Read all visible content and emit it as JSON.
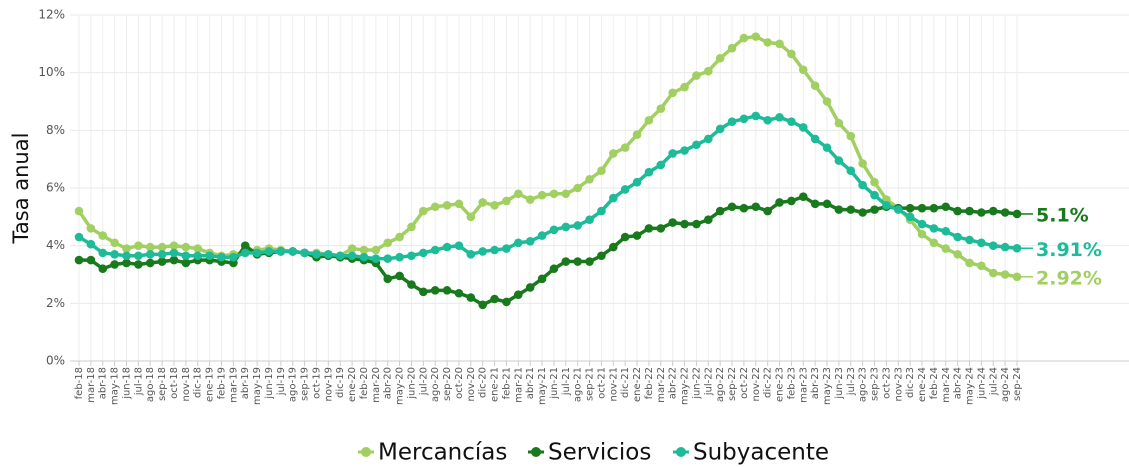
{
  "chart_data": {
    "type": "line",
    "y_label": "Tasa anual",
    "categories": [
      "feb-18",
      "mar-18",
      "abr-18",
      "may-18",
      "jun-18",
      "jul-18",
      "ago-18",
      "sep-18",
      "oct-18",
      "nov-18",
      "dic-18",
      "ene-19",
      "feb-19",
      "mar-19",
      "abr-19",
      "may-19",
      "jun-19",
      "jul-19",
      "ago-19",
      "sep-19",
      "oct-19",
      "nov-19",
      "dic-19",
      "ene-20",
      "feb-20",
      "mar-20",
      "abr-20",
      "may-20",
      "jun-20",
      "jul-20",
      "ago-20",
      "sep-20",
      "oct-20",
      "nov-20",
      "dic-20",
      "ene-21",
      "feb-21",
      "mar-21",
      "abr-21",
      "may-21",
      "jun-21",
      "jul-21",
      "ago-21",
      "sep-21",
      "oct-21",
      "nov-21",
      "dic-21",
      "ene-22",
      "feb-22",
      "mar-22",
      "abr-22",
      "may-22",
      "jun-22",
      "jul-22",
      "ago-22",
      "sep-22",
      "oct-22",
      "nov-22",
      "dic-22",
      "ene-23",
      "feb-23",
      "mar-23",
      "abr-23",
      "may-23",
      "jun-23",
      "jul-23",
      "ago-23",
      "sep-23",
      "oct-23",
      "nov-23",
      "dic-23",
      "ene-24",
      "feb-24",
      "mar-24",
      "abr-24",
      "may-24",
      "jun-24",
      "jul-24",
      "ago-24",
      "sep-24"
    ],
    "series": [
      {
        "name": "Mercancías",
        "color": "#a2cf62",
        "end_label": "2.92%",
        "values": [
          5.2,
          4.6,
          4.35,
          4.1,
          3.9,
          4.0,
          3.95,
          3.95,
          4.0,
          3.95,
          3.9,
          3.75,
          3.65,
          3.7,
          3.75,
          3.85,
          3.9,
          3.85,
          3.8,
          3.75,
          3.75,
          3.7,
          3.65,
          3.9,
          3.85,
          3.85,
          4.1,
          4.3,
          4.65,
          5.2,
          5.35,
          5.4,
          5.45,
          5.0,
          5.5,
          5.4,
          5.55,
          5.8,
          5.6,
          5.75,
          5.8,
          5.8,
          6.0,
          6.3,
          6.6,
          7.2,
          7.4,
          7.85,
          8.35,
          8.75,
          9.3,
          9.5,
          9.9,
          10.05,
          10.5,
          10.85,
          11.2,
          11.25,
          11.05,
          11.0,
          10.65,
          10.1,
          9.55,
          9.0,
          8.25,
          7.8,
          6.85,
          6.2,
          5.6,
          5.3,
          4.9,
          4.4,
          4.1,
          3.9,
          3.7,
          3.4,
          3.3,
          3.05,
          3.0,
          2.92
        ]
      },
      {
        "name": "Servicios",
        "color": "#187a1c",
        "end_label": "5.1%",
        "values": [
          3.5,
          3.5,
          3.2,
          3.35,
          3.4,
          3.35,
          3.4,
          3.45,
          3.5,
          3.4,
          3.5,
          3.5,
          3.45,
          3.4,
          4.0,
          3.7,
          3.75,
          3.8,
          3.8,
          3.75,
          3.6,
          3.65,
          3.6,
          3.55,
          3.5,
          3.4,
          2.85,
          2.95,
          2.65,
          2.4,
          2.45,
          2.45,
          2.35,
          2.2,
          1.95,
          2.15,
          2.05,
          2.3,
          2.55,
          2.85,
          3.2,
          3.45,
          3.45,
          3.45,
          3.65,
          3.95,
          4.3,
          4.35,
          4.6,
          4.6,
          4.8,
          4.75,
          4.75,
          4.9,
          5.2,
          5.35,
          5.3,
          5.35,
          5.2,
          5.5,
          5.55,
          5.7,
          5.45,
          5.45,
          5.25,
          5.25,
          5.15,
          5.25,
          5.35,
          5.3,
          5.3,
          5.3,
          5.3,
          5.35,
          5.2,
          5.2,
          5.15,
          5.2,
          5.15,
          5.1
        ]
      },
      {
        "name": "Subyacente",
        "color": "#1dbb98",
        "end_label": "3.91%",
        "values": [
          4.3,
          4.05,
          3.75,
          3.7,
          3.65,
          3.65,
          3.7,
          3.7,
          3.75,
          3.65,
          3.65,
          3.65,
          3.6,
          3.6,
          3.75,
          3.75,
          3.8,
          3.8,
          3.8,
          3.75,
          3.7,
          3.7,
          3.65,
          3.65,
          3.6,
          3.55,
          3.55,
          3.6,
          3.65,
          3.75,
          3.85,
          3.95,
          4.0,
          3.7,
          3.8,
          3.85,
          3.9,
          4.1,
          4.15,
          4.35,
          4.55,
          4.65,
          4.7,
          4.9,
          5.2,
          5.65,
          5.95,
          6.2,
          6.55,
          6.8,
          7.2,
          7.3,
          7.5,
          7.7,
          8.05,
          8.3,
          8.4,
          8.5,
          8.35,
          8.45,
          8.3,
          8.1,
          7.7,
          7.4,
          6.95,
          6.6,
          6.1,
          5.75,
          5.4,
          5.25,
          5.0,
          4.75,
          4.6,
          4.5,
          4.3,
          4.2,
          4.1,
          4.0,
          3.95,
          3.91
        ]
      }
    ],
    "ylim": [
      0,
      12
    ],
    "yticks": [
      {
        "value": 0,
        "label": "0%"
      },
      {
        "value": 2,
        "label": "2%"
      },
      {
        "value": 4,
        "label": "4%"
      },
      {
        "value": 6,
        "label": "6%"
      },
      {
        "value": 8,
        "label": "8%"
      },
      {
        "value": 10,
        "label": "10%"
      },
      {
        "value": 12,
        "label": "12%"
      }
    ],
    "grid": true,
    "legend": "bottom"
  }
}
